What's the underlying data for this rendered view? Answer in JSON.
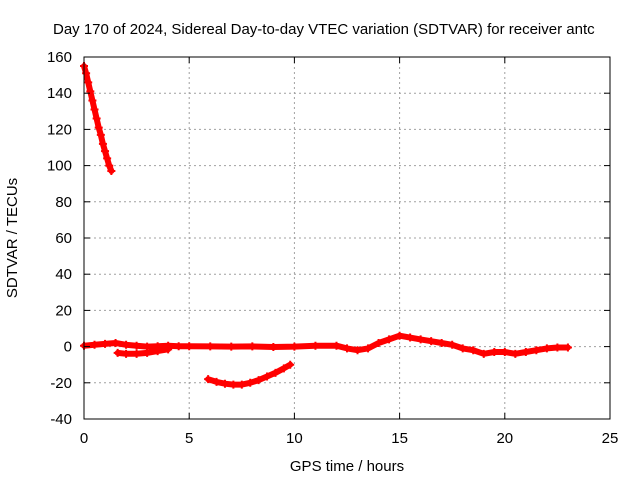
{
  "chart_data": {
    "type": "scatter",
    "title": "Day 170 of 2024, Sidereal Day-to-day VTEC variation (SDTVAR) for receiver antc",
    "xlabel": "GPS time / hours",
    "ylabel": "SDTVAR / TECUs",
    "xlim": [
      0,
      25
    ],
    "ylim": [
      -40,
      160
    ],
    "xticks": [
      0,
      5,
      10,
      15,
      20,
      25
    ],
    "yticks": [
      -40,
      -20,
      0,
      20,
      40,
      60,
      80,
      100,
      120,
      140,
      160
    ],
    "grid": true,
    "marker_color": "#ff0000",
    "series": [
      {
        "name": "arc-early-decline",
        "x": [
          0.0,
          0.1,
          0.2,
          0.3,
          0.4,
          0.5,
          0.6,
          0.7,
          0.8,
          0.9,
          1.0,
          1.1,
          1.2,
          1.3
        ],
        "y": [
          155,
          151,
          146,
          141,
          136,
          131,
          126,
          121,
          117,
          112,
          108,
          104,
          100,
          97
        ]
      },
      {
        "name": "arc-main-near-zero",
        "x": [
          0.0,
          0.5,
          1.0,
          1.5,
          2.0,
          2.5,
          3.0,
          3.5,
          4.0,
          4.5,
          5.0,
          6.0,
          7.0,
          8.0,
          9.0,
          10.0,
          11.0,
          12.0,
          12.5,
          13.0,
          13.5,
          14.0,
          14.5,
          15.0,
          15.5,
          16.0,
          16.5,
          17.0,
          17.5,
          18.0,
          18.5,
          19.0,
          19.5,
          20.0,
          20.5,
          21.0,
          21.5,
          22.0,
          22.5,
          23.0
        ],
        "y": [
          0.5,
          1,
          1.5,
          2,
          1,
          0.5,
          0,
          0.2,
          0.5,
          0.2,
          0.2,
          0.1,
          0,
          0.1,
          -0.2,
          0,
          0.5,
          0.5,
          -1,
          -2,
          -1,
          2,
          4,
          6,
          5,
          4,
          3,
          2,
          1,
          -1,
          -2,
          -4,
          -3,
          -3,
          -4,
          -3,
          -2,
          -1,
          -0.5,
          -0.5
        ]
      },
      {
        "name": "arc-short-negative",
        "x": [
          1.6,
          2.0,
          2.5,
          3.0,
          3.5,
          4.0
        ],
        "y": [
          -3.5,
          -4,
          -4,
          -3.5,
          -2.5,
          -1.5
        ]
      },
      {
        "name": "arc-dip",
        "x": [
          5.9,
          6.3,
          6.7,
          7.1,
          7.5,
          7.9,
          8.3,
          8.7,
          9.1,
          9.5,
          9.8
        ],
        "y": [
          -18,
          -19.5,
          -20.5,
          -21,
          -21,
          -20,
          -18.5,
          -16.5,
          -14.5,
          -12,
          -10
        ]
      }
    ]
  }
}
